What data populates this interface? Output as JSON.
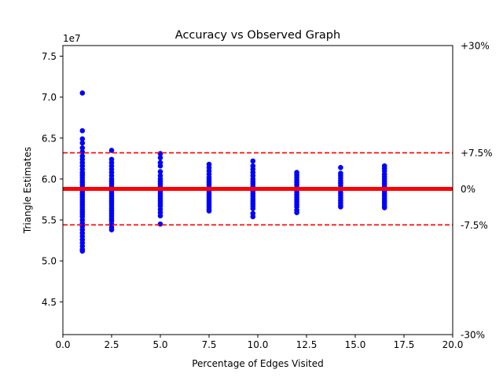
{
  "chart_data": {
    "type": "scatter",
    "title": "Accuracy vs Observed Graph",
    "xlabel": "Percentage of Edges Visited",
    "ylabel": "Triangle Estimates",
    "y_offset_text": "1e7",
    "xlim": [
      0,
      20
    ],
    "ylim": [
      41000000.0,
      76300000.0
    ],
    "x_ticks": [
      0,
      2.5,
      5,
      7.5,
      10,
      12.5,
      15,
      17.5,
      20
    ],
    "x_tick_labels": [
      "0.0",
      "2.5",
      "5.0",
      "7.5",
      "10.0",
      "12.5",
      "15.0",
      "17.5",
      "20.0"
    ],
    "y_ticks": [
      45000000.0,
      50000000.0,
      55000000.0,
      60000000.0,
      65000000.0,
      70000000.0,
      75000000.0
    ],
    "y_tick_labels": [
      "4.5",
      "5.0",
      "5.5",
      "6.0",
      "6.5",
      "7.0",
      "7.5"
    ],
    "grid": false,
    "point_color": "#0000ff",
    "reference_color": "#ff0000",
    "reference_lines": [
      {
        "label": "0%",
        "y": 58800000.0,
        "style": "solid"
      },
      {
        "label": "+7.5%",
        "y": 63200000.0,
        "style": "dashed"
      },
      {
        "label": "-7.5%",
        "y": 54400000.0,
        "style": "dashed"
      }
    ],
    "right_labels": [
      {
        "label": "+30%",
        "y": 76300000.0
      },
      {
        "label": "+7.5%",
        "y": 63200000.0
      },
      {
        "label": "0%",
        "y": 58800000.0
      },
      {
        "label": "-7.5%",
        "y": 54400000.0
      },
      {
        "label": "-30%",
        "y": 41000000.0
      }
    ],
    "series": [
      {
        "x": 1.0,
        "values": [
          70500000.0,
          65900000.0,
          64900000.0,
          64400000.0,
          63800000.0,
          63300000.0,
          62800000.0,
          62400000.0,
          62000000.0,
          61600000.0,
          61200000.0,
          60800000.0,
          60500000.0,
          60200000.0,
          59900000.0,
          59600000.0,
          59300000.0,
          59000000.0,
          58700000.0,
          58400000.0,
          58100000.0,
          57800000.0,
          57500000.0,
          57200000.0,
          56900000.0,
          56600000.0,
          56300000.0,
          56000000.0,
          55700000.0,
          55400000.0,
          55000000.0,
          54600000.0,
          54200000.0,
          53800000.0,
          53400000.0,
          53000000.0,
          52600000.0,
          52200000.0,
          51800000.0,
          51400000.0,
          51200000.0
        ]
      },
      {
        "x": 2.5,
        "values": [
          63500000.0,
          62400000.0,
          62000000.0,
          61600000.0,
          61200000.0,
          60800000.0,
          60400000.0,
          60000000.0,
          59700000.0,
          59400000.0,
          59100000.0,
          58800000.0,
          58500000.0,
          58200000.0,
          57900000.0,
          57600000.0,
          57300000.0,
          57000000.0,
          56700000.0,
          56400000.0,
          56100000.0,
          55800000.0,
          55500000.0,
          55200000.0,
          54900000.0,
          54500000.0,
          54100000.0,
          53800000.0
        ]
      },
      {
        "x": 5.0,
        "values": [
          63100000.0,
          62600000.0,
          62000000.0,
          61600000.0,
          60900000.0,
          60400000.0,
          60000000.0,
          59700000.0,
          59400000.0,
          59100000.0,
          58800000.0,
          58500000.0,
          58200000.0,
          57900000.0,
          57600000.0,
          57300000.0,
          57000000.0,
          56700000.0,
          56300000.0,
          55900000.0,
          55500000.0,
          54500000.0
        ]
      },
      {
        "x": 7.5,
        "values": [
          61800000.0,
          61400000.0,
          61000000.0,
          60600000.0,
          60200000.0,
          59900000.0,
          59600000.0,
          59300000.0,
          59000000.0,
          58700000.0,
          58400000.0,
          58100000.0,
          57800000.0,
          57500000.0,
          57200000.0,
          56900000.0,
          56600000.0,
          56300000.0,
          56100000.0
        ]
      },
      {
        "x": 9.75,
        "values": [
          62200000.0,
          61600000.0,
          61200000.0,
          60800000.0,
          60400000.0,
          60000000.0,
          59700000.0,
          59400000.0,
          59100000.0,
          58800000.0,
          58500000.0,
          58200000.0,
          57900000.0,
          57600000.0,
          57300000.0,
          57000000.0,
          56700000.0,
          56400000.0,
          55800000.0,
          55400000.0
        ]
      },
      {
        "x": 12.0,
        "values": [
          60800000.0,
          60500000.0,
          60200000.0,
          59900000.0,
          59600000.0,
          59300000.0,
          59000000.0,
          58700000.0,
          58400000.0,
          58100000.0,
          57800000.0,
          57500000.0,
          57200000.0,
          56900000.0,
          56600000.0,
          56200000.0,
          55900000.0
        ]
      },
      {
        "x": 14.25,
        "values": [
          61400000.0,
          60700000.0,
          60400000.0,
          60100000.0,
          59800000.0,
          59500000.0,
          59200000.0,
          58900000.0,
          58600000.0,
          58300000.0,
          58000000.0,
          57700000.0,
          57400000.0,
          57100000.0,
          56800000.0,
          56600000.0
        ]
      },
      {
        "x": 16.5,
        "values": [
          61600000.0,
          61300000.0,
          61000000.0,
          60600000.0,
          60300000.0,
          60000000.0,
          59700000.0,
          59400000.0,
          59100000.0,
          58800000.0,
          58500000.0,
          58200000.0,
          57900000.0,
          57600000.0,
          57300000.0,
          57000000.0,
          56700000.0,
          56500000.0
        ]
      }
    ]
  }
}
